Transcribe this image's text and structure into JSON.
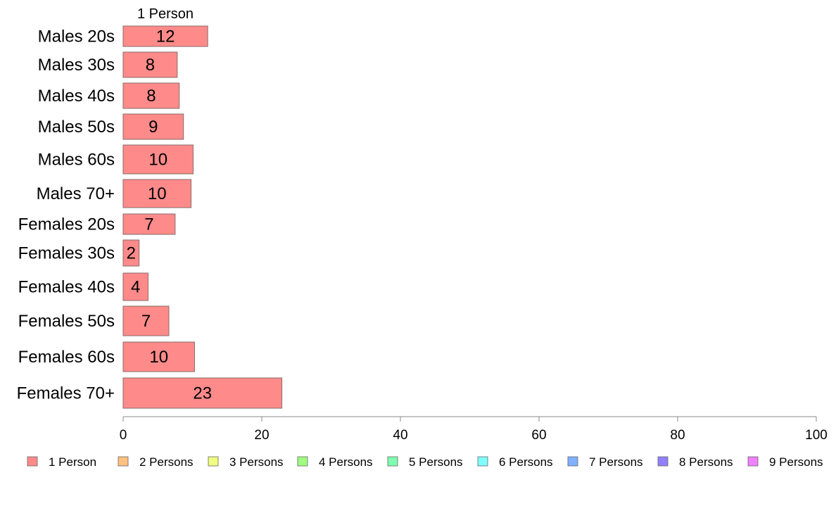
{
  "chart_data": {
    "type": "bar",
    "orientation": "horizontal",
    "stacked": true,
    "categories": [
      "Males 20s",
      "Males 30s",
      "Males 40s",
      "Males 50s",
      "Males 60s",
      "Males 70+",
      "Females 20s",
      "Females 30s",
      "Females 40s",
      "Females 50s",
      "Females 60s",
      "Females 70+"
    ],
    "series": [
      {
        "name": "1 Person",
        "color": "#ff8a8a",
        "values": [
          12,
          8,
          8,
          9,
          10,
          10,
          7,
          2,
          4,
          7,
          10,
          23
        ],
        "exact_values": [
          12.2,
          7.8,
          8.1,
          8.7,
          10.1,
          9.8,
          7.5,
          2.3,
          3.6,
          6.6,
          10.3,
          22.9
        ],
        "labels": [
          "12",
          "8",
          "8",
          "9",
          "10",
          "10",
          "7",
          "2",
          "4",
          "7",
          "10",
          "23"
        ]
      },
      {
        "name": "2 Persons",
        "color": "#ffc080",
        "values": [
          0,
          0,
          0,
          0,
          0,
          0,
          0,
          0,
          0,
          0,
          0,
          0
        ]
      },
      {
        "name": "3 Persons",
        "color": "#f0ff80",
        "values": [
          0,
          0,
          0,
          0,
          0,
          0,
          0,
          0,
          0,
          0,
          0,
          0
        ]
      },
      {
        "name": "4 Persons",
        "color": "#a0ff80",
        "values": [
          0,
          0,
          0,
          0,
          0,
          0,
          0,
          0,
          0,
          0,
          0,
          0
        ]
      },
      {
        "name": "5 Persons",
        "color": "#80ffb0",
        "values": [
          0,
          0,
          0,
          0,
          0,
          0,
          0,
          0,
          0,
          0,
          0,
          0
        ]
      },
      {
        "name": "6 Persons",
        "color": "#80ffff",
        "values": [
          0,
          0,
          0,
          0,
          0,
          0,
          0,
          0,
          0,
          0,
          0,
          0
        ]
      },
      {
        "name": "7 Persons",
        "color": "#80b0ff",
        "values": [
          0,
          0,
          0,
          0,
          0,
          0,
          0,
          0,
          0,
          0,
          0,
          0
        ]
      },
      {
        "name": "8 Persons",
        "color": "#9080ff",
        "values": [
          0,
          0,
          0,
          0,
          0,
          0,
          0,
          0,
          0,
          0,
          0,
          0
        ]
      },
      {
        "name": "9 Persons",
        "color": "#f080ff",
        "values": [
          0,
          0,
          0,
          0,
          0,
          0,
          0,
          0,
          0,
          0,
          0,
          0
        ]
      }
    ],
    "column_header": "1 Person",
    "xlim": [
      0,
      100
    ],
    "xticks": [
      0,
      20,
      40,
      60,
      80,
      100
    ],
    "xtick_labels": [
      "0",
      "20",
      "40",
      "60",
      "80",
      "100"
    ],
    "grid": false,
    "legend_position": "bottom"
  }
}
